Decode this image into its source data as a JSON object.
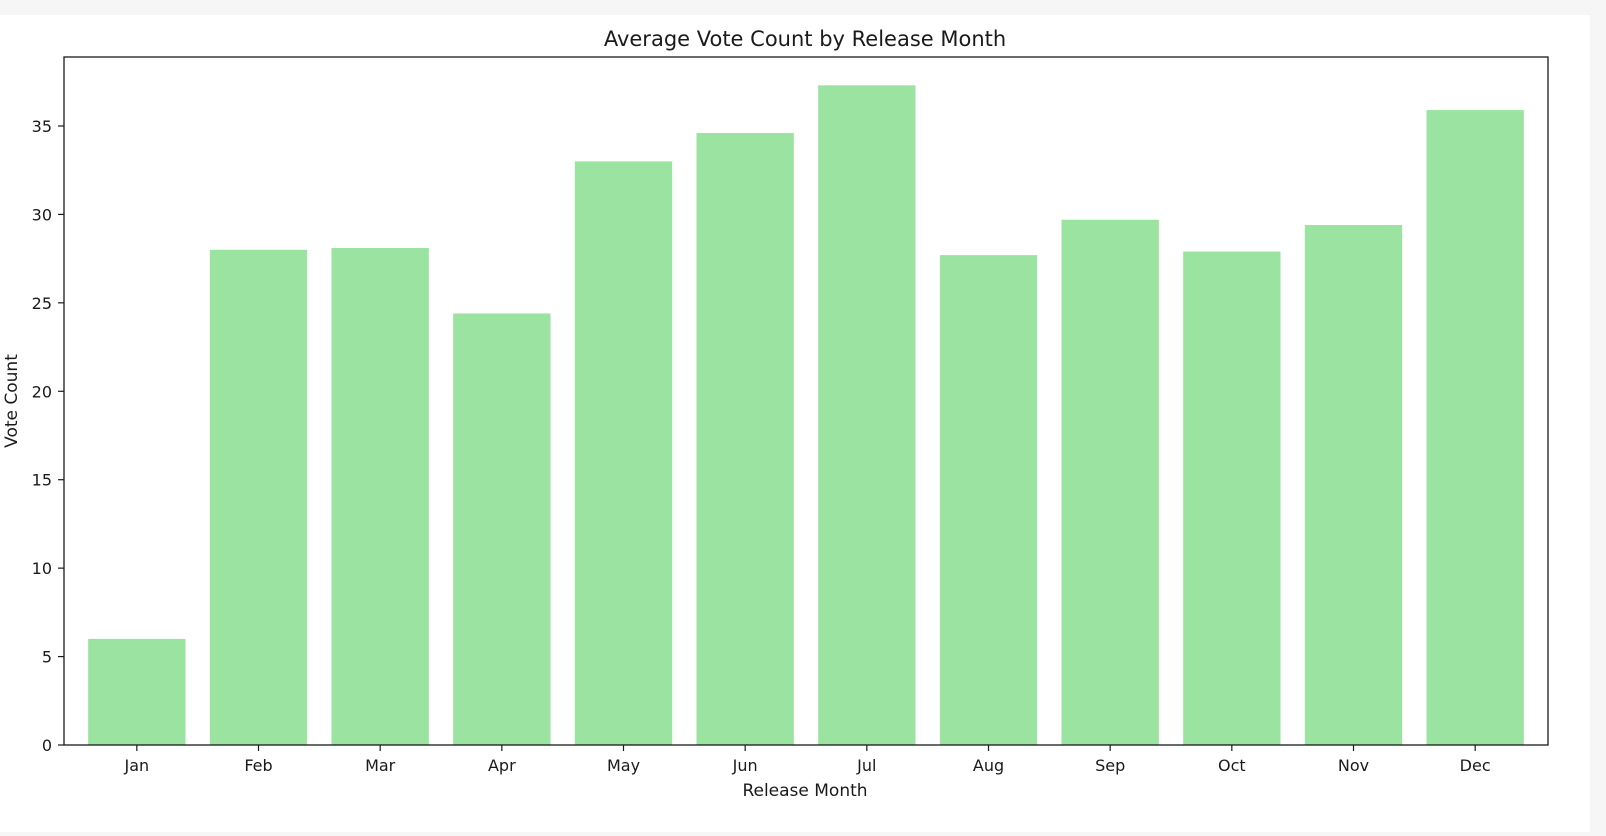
{
  "chart_data": {
    "type": "bar",
    "title": "Average Vote Count by Release Month",
    "xlabel": "Release Month",
    "ylabel": "Vote Count",
    "categories": [
      "Jan",
      "Feb",
      "Mar",
      "Apr",
      "May",
      "Jun",
      "Jul",
      "Aug",
      "Sep",
      "Oct",
      "Nov",
      "Dec"
    ],
    "values": [
      6.0,
      28.0,
      28.1,
      24.4,
      33.0,
      34.6,
      37.3,
      27.7,
      29.7,
      27.9,
      29.4,
      35.9
    ],
    "ylim": [
      0,
      38.9
    ],
    "yticks": [
      0,
      5,
      10,
      15,
      20,
      25,
      30,
      35
    ],
    "bar_color": "#9be3a0",
    "grid": false,
    "legend": "none"
  }
}
